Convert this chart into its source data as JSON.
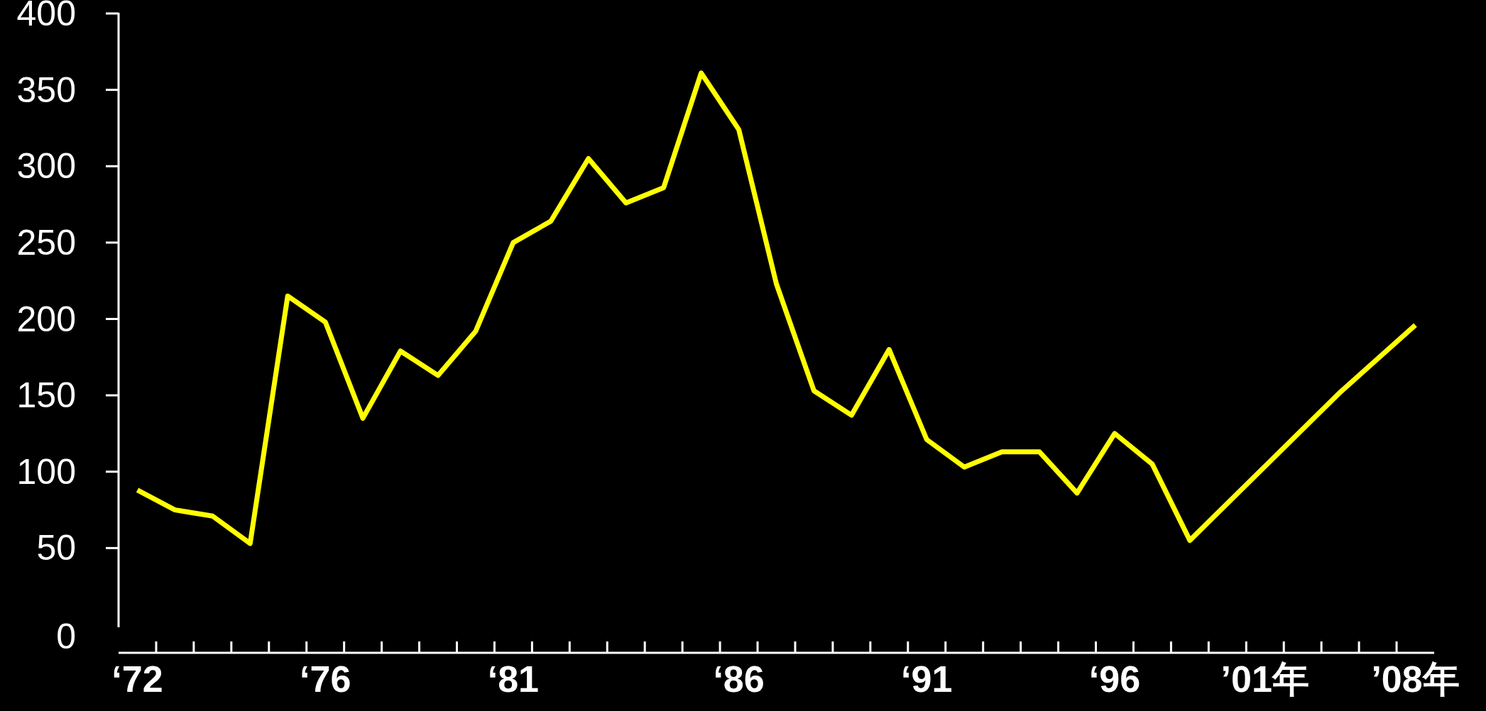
{
  "chart_data": {
    "type": "line",
    "categories": [
      "‘72",
      null,
      null,
      null,
      null,
      "‘76",
      null,
      null,
      null,
      null,
      "‘81",
      null,
      null,
      null,
      null,
      null,
      "‘86",
      null,
      null,
      null,
      null,
      "‘91",
      null,
      null,
      null,
      null,
      "‘96",
      null,
      null,
      null,
      "’01年",
      null,
      null,
      null,
      "’08年"
    ],
    "series": [
      {
        "color": "#ffff00",
        "values": [
          88,
          75,
          71,
          53,
          215,
          198,
          135,
          179,
          163,
          192,
          250,
          264,
          305,
          276,
          286,
          361,
          324,
          223,
          153,
          137,
          180,
          121,
          103,
          113,
          113,
          86,
          125,
          105,
          55,
          null,
          null,
          null,
          152,
          null,
          196
        ]
      }
    ],
    "ylim": [
      0,
      400
    ],
    "yticks": [
      0,
      50,
      100,
      150,
      200,
      250,
      300,
      350,
      400
    ],
    "grid": false,
    "marker": "none",
    "line_style": "solid"
  }
}
